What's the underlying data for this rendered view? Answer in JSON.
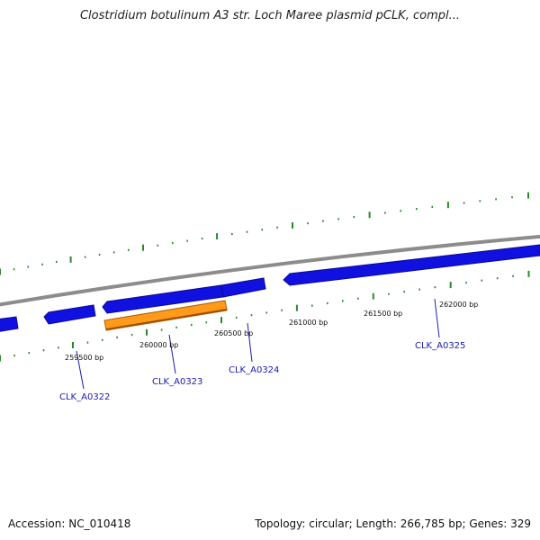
{
  "title": "Clostridium botulinum A3 str. Loch Maree plasmid pCLK, compl...",
  "footer": {
    "accession": "Accession: NC_010418",
    "summary": "Topology: circular; Length: 266,785 bp; Genes: 329"
  },
  "colors": {
    "gene": "#1010e0",
    "gene_selected": "#ff9a1a",
    "backbone": "#8c8c8c",
    "tick": "#2a8a2a",
    "label": "#1a1ab0"
  },
  "position_labels": [
    "259500 bp",
    "260000 bp",
    "260500 bp",
    "261000 bp",
    "261500 bp",
    "262000 bp"
  ],
  "gene_labels": [
    "CLK_A0322",
    "CLK_A0323",
    "CLK_A0324",
    "CLK_A0325"
  ],
  "genes": [
    {
      "strand": "-",
      "selected": false
    },
    {
      "strand": "-",
      "selected": false
    },
    {
      "strand": "-",
      "selected": false,
      "name": "CLK_A0322"
    },
    {
      "strand": "+",
      "selected": true,
      "name": "CLK_A0323"
    },
    {
      "strand": "-",
      "selected": false,
      "name": "CLK_A0324"
    },
    {
      "strand": "-",
      "selected": false,
      "name": "CLK_A0325"
    }
  ]
}
